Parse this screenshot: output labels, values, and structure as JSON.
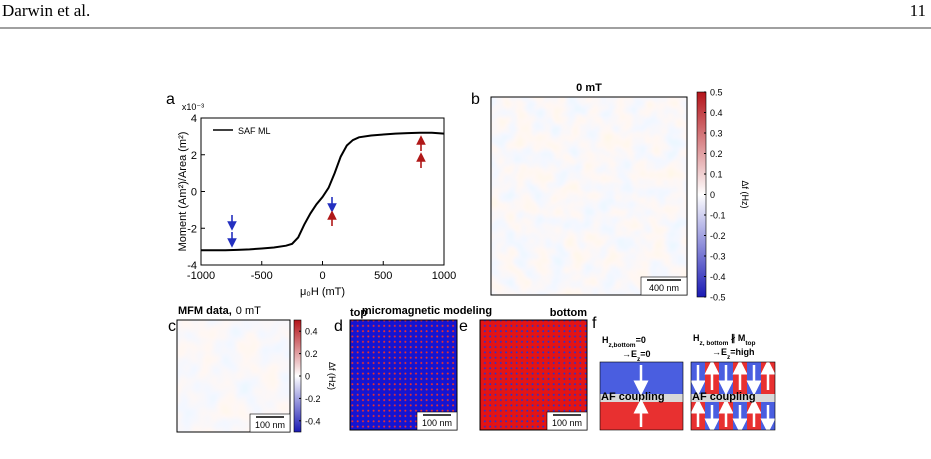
{
  "header": {
    "authors": "Darwin et al.",
    "page": "11"
  },
  "chart_data": {
    "type": "line",
    "panel": "a",
    "xlabel": "μ₀H (mT)",
    "ylabel": "Moment (Am²)/Area (m²)",
    "y_exponent": "x10⁻³",
    "x": [
      -1000,
      -900,
      -800,
      -700,
      -600,
      -500,
      -400,
      -300,
      -250,
      -200,
      -150,
      -100,
      -50,
      0,
      50,
      100,
      150,
      200,
      250,
      300,
      400,
      500,
      600,
      700,
      800,
      900,
      1000
    ],
    "series": [
      {
        "name": "SAF ML",
        "color": "#000000",
        "values": [
          -3.2,
          -3.2,
          -3.2,
          -3.18,
          -3.15,
          -3.1,
          -3.05,
          -2.95,
          -2.85,
          -2.5,
          -1.8,
          -1.2,
          -0.7,
          -0.3,
          0.2,
          1.0,
          1.9,
          2.5,
          2.8,
          2.95,
          3.05,
          3.1,
          3.15,
          3.18,
          3.2,
          3.2,
          3.15
        ]
      }
    ],
    "xlim": [
      -1000,
      1000
    ],
    "xticks": [
      -1000,
      -500,
      0,
      500,
      1000
    ],
    "ylim": [
      -4,
      4
    ],
    "yticks": [
      -4,
      -2,
      0,
      2,
      4
    ],
    "legend": "upper-left"
  },
  "figure": {
    "panel_b": {
      "label": "b",
      "title": "0 mT",
      "scale_bar": "400 nm",
      "colorbar": {
        "lim": [
          -0.5,
          0.5
        ],
        "ticks": [
          0.5,
          0.4,
          0.3,
          0.2,
          0.1,
          0,
          -0.1,
          -0.2,
          -0.3,
          -0.4,
          -0.5
        ],
        "label": "Δf (Hz)"
      }
    },
    "panel_c": {
      "label": "c",
      "title_bold": "MFM data,",
      "title_rest": "0 mT",
      "scale_bar": "100 nm",
      "colorbar": {
        "lim": [
          -0.5,
          0.5
        ],
        "ticks": [
          0.4,
          0.2,
          0,
          -0.2,
          -0.4
        ],
        "label": "Δf (Hz)"
      }
    },
    "panel_d": {
      "label": "d",
      "title": "top",
      "scale_bar": "100 nm"
    },
    "modeling_title": "micromagnetic modeling",
    "panel_e": {
      "label": "e",
      "title": "bottom",
      "scale_bar": "100 nm"
    },
    "panel_f": {
      "label": "f",
      "left": {
        "line1": [
          "H",
          "z,bottom",
          "=0"
        ],
        "line2": [
          "→E",
          "z",
          "=0"
        ],
        "coupling": "AF coupling"
      },
      "right": {
        "line1": [
          "H",
          "z, bottom",
          " ∦ M",
          "top"
        ],
        "line2": [
          "→E",
          "z",
          "=high"
        ],
        "coupling": "AF coupling"
      }
    }
  }
}
